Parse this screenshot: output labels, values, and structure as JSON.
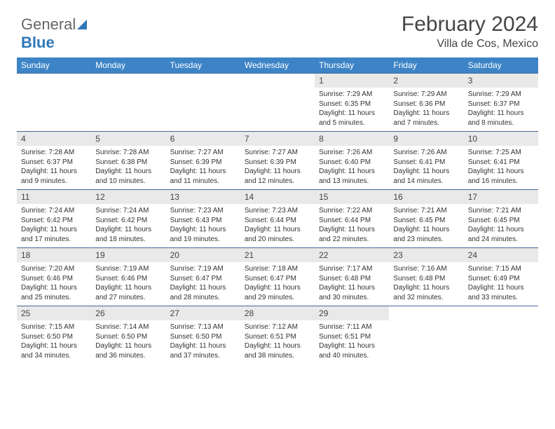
{
  "logo": {
    "part1": "General",
    "part2": "Blue"
  },
  "header": {
    "month_title": "February 2024",
    "location": "Villa de Cos, Mexico"
  },
  "colors": {
    "header_bg": "#3d84c6",
    "header_text": "#ffffff",
    "row_divider": "#3d6a9a",
    "daynum_bg": "#e9e9e9",
    "text": "#333333"
  },
  "weekdays": [
    "Sunday",
    "Monday",
    "Tuesday",
    "Wednesday",
    "Thursday",
    "Friday",
    "Saturday"
  ],
  "weeks": [
    [
      null,
      null,
      null,
      null,
      {
        "n": "1",
        "sr": "7:29 AM",
        "ss": "6:35 PM",
        "dl": "11 hours and 5 minutes."
      },
      {
        "n": "2",
        "sr": "7:29 AM",
        "ss": "6:36 PM",
        "dl": "11 hours and 7 minutes."
      },
      {
        "n": "3",
        "sr": "7:29 AM",
        "ss": "6:37 PM",
        "dl": "11 hours and 8 minutes."
      }
    ],
    [
      {
        "n": "4",
        "sr": "7:28 AM",
        "ss": "6:37 PM",
        "dl": "11 hours and 9 minutes."
      },
      {
        "n": "5",
        "sr": "7:28 AM",
        "ss": "6:38 PM",
        "dl": "11 hours and 10 minutes."
      },
      {
        "n": "6",
        "sr": "7:27 AM",
        "ss": "6:39 PM",
        "dl": "11 hours and 11 minutes."
      },
      {
        "n": "7",
        "sr": "7:27 AM",
        "ss": "6:39 PM",
        "dl": "11 hours and 12 minutes."
      },
      {
        "n": "8",
        "sr": "7:26 AM",
        "ss": "6:40 PM",
        "dl": "11 hours and 13 minutes."
      },
      {
        "n": "9",
        "sr": "7:26 AM",
        "ss": "6:41 PM",
        "dl": "11 hours and 14 minutes."
      },
      {
        "n": "10",
        "sr": "7:25 AM",
        "ss": "6:41 PM",
        "dl": "11 hours and 16 minutes."
      }
    ],
    [
      {
        "n": "11",
        "sr": "7:24 AM",
        "ss": "6:42 PM",
        "dl": "11 hours and 17 minutes."
      },
      {
        "n": "12",
        "sr": "7:24 AM",
        "ss": "6:42 PM",
        "dl": "11 hours and 18 minutes."
      },
      {
        "n": "13",
        "sr": "7:23 AM",
        "ss": "6:43 PM",
        "dl": "11 hours and 19 minutes."
      },
      {
        "n": "14",
        "sr": "7:23 AM",
        "ss": "6:44 PM",
        "dl": "11 hours and 20 minutes."
      },
      {
        "n": "15",
        "sr": "7:22 AM",
        "ss": "6:44 PM",
        "dl": "11 hours and 22 minutes."
      },
      {
        "n": "16",
        "sr": "7:21 AM",
        "ss": "6:45 PM",
        "dl": "11 hours and 23 minutes."
      },
      {
        "n": "17",
        "sr": "7:21 AM",
        "ss": "6:45 PM",
        "dl": "11 hours and 24 minutes."
      }
    ],
    [
      {
        "n": "18",
        "sr": "7:20 AM",
        "ss": "6:46 PM",
        "dl": "11 hours and 25 minutes."
      },
      {
        "n": "19",
        "sr": "7:19 AM",
        "ss": "6:46 PM",
        "dl": "11 hours and 27 minutes."
      },
      {
        "n": "20",
        "sr": "7:19 AM",
        "ss": "6:47 PM",
        "dl": "11 hours and 28 minutes."
      },
      {
        "n": "21",
        "sr": "7:18 AM",
        "ss": "6:47 PM",
        "dl": "11 hours and 29 minutes."
      },
      {
        "n": "22",
        "sr": "7:17 AM",
        "ss": "6:48 PM",
        "dl": "11 hours and 30 minutes."
      },
      {
        "n": "23",
        "sr": "7:16 AM",
        "ss": "6:48 PM",
        "dl": "11 hours and 32 minutes."
      },
      {
        "n": "24",
        "sr": "7:15 AM",
        "ss": "6:49 PM",
        "dl": "11 hours and 33 minutes."
      }
    ],
    [
      {
        "n": "25",
        "sr": "7:15 AM",
        "ss": "6:50 PM",
        "dl": "11 hours and 34 minutes."
      },
      {
        "n": "26",
        "sr": "7:14 AM",
        "ss": "6:50 PM",
        "dl": "11 hours and 36 minutes."
      },
      {
        "n": "27",
        "sr": "7:13 AM",
        "ss": "6:50 PM",
        "dl": "11 hours and 37 minutes."
      },
      {
        "n": "28",
        "sr": "7:12 AM",
        "ss": "6:51 PM",
        "dl": "11 hours and 38 minutes."
      },
      {
        "n": "29",
        "sr": "7:11 AM",
        "ss": "6:51 PM",
        "dl": "11 hours and 40 minutes."
      },
      null,
      null
    ]
  ],
  "labels": {
    "sunrise": "Sunrise:",
    "sunset": "Sunset:",
    "daylight": "Daylight:"
  }
}
